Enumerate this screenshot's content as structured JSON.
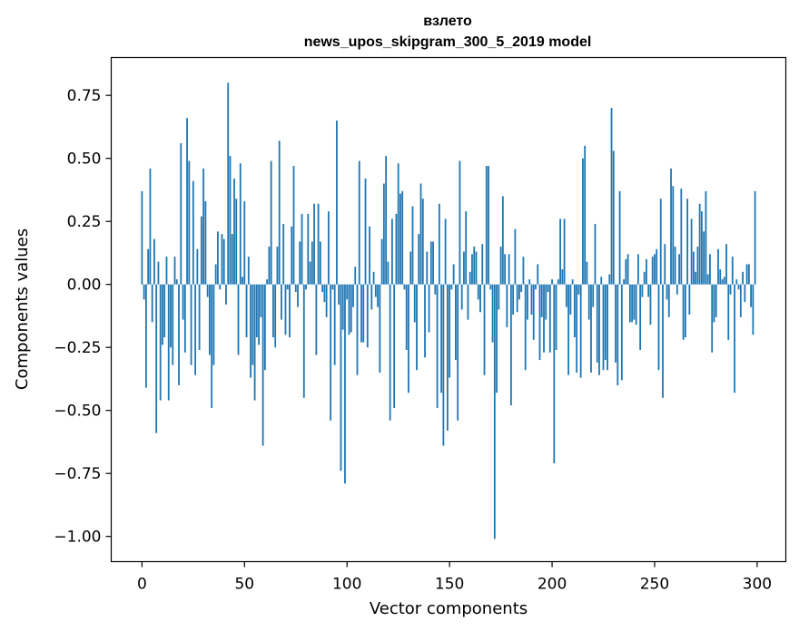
{
  "chart_data": {
    "type": "bar",
    "title": "взлето",
    "subtitle": "news_upos_skipgram_300_5_2019 model",
    "xlabel": "Vector components",
    "ylabel": "Components values",
    "xlim": [
      -15,
      314
    ],
    "ylim": [
      -1.1,
      0.9
    ],
    "xticks": [
      0,
      50,
      100,
      150,
      200,
      250,
      300
    ],
    "yticks": [
      -1.0,
      -0.75,
      -0.5,
      -0.25,
      0.0,
      0.25,
      0.5,
      0.75
    ],
    "xtick_labels": [
      "0",
      "50",
      "100",
      "150",
      "200",
      "250",
      "300"
    ],
    "ytick_labels": [
      "−1.00",
      "−0.75",
      "−0.50",
      "−0.25",
      "0.00",
      "0.25",
      "0.50",
      "0.75"
    ],
    "bar_color": "#1f77b4",
    "grid": false,
    "x": [
      0,
      1,
      2,
      3,
      4,
      5,
      6,
      7,
      8,
      9,
      10,
      11,
      12,
      13,
      14,
      15,
      16,
      17,
      18,
      19,
      20,
      21,
      22,
      23,
      24,
      25,
      26,
      27,
      28,
      29,
      30,
      31,
      32,
      33,
      34,
      35,
      36,
      37,
      38,
      39,
      40,
      41,
      42,
      43,
      44,
      45,
      46,
      47,
      48,
      49,
      50,
      51,
      52,
      53,
      54,
      55,
      56,
      57,
      58,
      59,
      60,
      61,
      62,
      63,
      64,
      65,
      66,
      67,
      68,
      69,
      70,
      71,
      72,
      73,
      74,
      75,
      76,
      77,
      78,
      79,
      80,
      81,
      82,
      83,
      84,
      85,
      86,
      87,
      88,
      89,
      90,
      91,
      92,
      93,
      94,
      95,
      96,
      97,
      98,
      99,
      100,
      101,
      102,
      103,
      104,
      105,
      106,
      107,
      108,
      109,
      110,
      111,
      112,
      113,
      114,
      115,
      116,
      117,
      118,
      119,
      120,
      121,
      122,
      123,
      124,
      125,
      126,
      127,
      128,
      129,
      130,
      131,
      132,
      133,
      134,
      135,
      136,
      137,
      138,
      139,
      140,
      141,
      142,
      143,
      144,
      145,
      146,
      147,
      148,
      149,
      150,
      151,
      152,
      153,
      154,
      155,
      156,
      157,
      158,
      159,
      160,
      161,
      162,
      163,
      164,
      165,
      166,
      167,
      168,
      169,
      170,
      171,
      172,
      173,
      174,
      175,
      176,
      177,
      178,
      179,
      180,
      181,
      182,
      183,
      184,
      185,
      186,
      187,
      188,
      189,
      190,
      191,
      192,
      193,
      194,
      195,
      196,
      197,
      198,
      199,
      200,
      201,
      202,
      203,
      204,
      205,
      206,
      207,
      208,
      209,
      210,
      211,
      212,
      213,
      214,
      215,
      216,
      217,
      218,
      219,
      220,
      221,
      222,
      223,
      224,
      225,
      226,
      227,
      228,
      229,
      230,
      231,
      232,
      233,
      234,
      235,
      236,
      237,
      238,
      239,
      240,
      241,
      242,
      243,
      244,
      245,
      246,
      247,
      248,
      249,
      250,
      251,
      252,
      253,
      254,
      255,
      256,
      257,
      258,
      259,
      260,
      261,
      262,
      263,
      264,
      265,
      266,
      267,
      268,
      269,
      270,
      271,
      272,
      273,
      274,
      275,
      276,
      277,
      278,
      279,
      280,
      281,
      282,
      283,
      284,
      285,
      286,
      287,
      288,
      289,
      290,
      291,
      292,
      293,
      294,
      295,
      296,
      297,
      298,
      299
    ],
    "values": [
      0.37,
      -0.06,
      -0.41,
      0.14,
      0.46,
      -0.15,
      0.18,
      -0.59,
      0.09,
      -0.46,
      -0.24,
      -0.21,
      0.11,
      -0.46,
      -0.25,
      -0.32,
      0.11,
      0.02,
      -0.4,
      0.56,
      -0.14,
      -0.27,
      0.66,
      0.49,
      -0.32,
      0.41,
      -0.36,
      0.14,
      -0.26,
      0.27,
      0.46,
      0.33,
      -0.05,
      -0.28,
      -0.49,
      -0.32,
      0.08,
      0.21,
      -0.02,
      0.2,
      0.18,
      -0.08,
      0.8,
      0.51,
      0.2,
      0.42,
      0.34,
      -0.28,
      0.48,
      0.03,
      0.33,
      -0.21,
      0.11,
      -0.37,
      -0.32,
      -0.46,
      -0.21,
      -0.24,
      -0.13,
      -0.64,
      -0.34,
      0.02,
      0.15,
      0.49,
      -0.21,
      -0.25,
      0.15,
      0.57,
      -0.14,
      0.24,
      -0.2,
      -0.02,
      -0.21,
      0.23,
      0.47,
      -0.03,
      -0.09,
      0.17,
      0.28,
      -0.45,
      -0.02,
      0.28,
      0.09,
      0.17,
      0.32,
      -0.28,
      0.32,
      0.17,
      -0.03,
      -0.07,
      -0.13,
      0.29,
      -0.54,
      -0.02,
      -0.32,
      0.65,
      -0.08,
      -0.74,
      -0.18,
      -0.79,
      -0.06,
      -0.2,
      -0.19,
      -0.09,
      0.07,
      -0.36,
      0.49,
      -0.23,
      -0.23,
      0.42,
      -0.25,
      0.23,
      -0.1,
      0.05,
      -0.05,
      -0.09,
      -0.35,
      0.18,
      0.4,
      0.51,
      0.09,
      -0.54,
      0.26,
      -0.49,
      0.28,
      0.48,
      0.36,
      0.37,
      -0.02,
      -0.26,
      -0.43,
      0.13,
      0.31,
      -0.15,
      -0.34,
      0.2,
      0.4,
      0.34,
      -0.29,
      0.13,
      -0.19,
      0.17,
      0.17,
      -0.04,
      -0.49,
      0.32,
      -0.43,
      -0.64,
      0.26,
      -0.58,
      -0.37,
      -0.02,
      0.08,
      -0.3,
      -0.54,
      0.49,
      -0.1,
      0.13,
      0.29,
      -0.14,
      0.05,
      0.12,
      0.15,
      0.13,
      -0.06,
      -0.11,
      0.16,
      -0.36,
      0.47,
      0.47,
      -0.02,
      -0.23,
      -1.01,
      -0.43,
      -0.1,
      0.15,
      0.35,
      0.12,
      -0.17,
      0.12,
      -0.48,
      -0.12,
      0.22,
      -0.11,
      -0.06,
      -0.03,
      0.11,
      -0.34,
      -0.14,
      0.02,
      -0.12,
      -0.22,
      -0.02,
      0.08,
      -0.3,
      -0.13,
      -0.27,
      -0.14,
      -0.03,
      -0.27,
      0.02,
      -0.71,
      -0.26,
      0.02,
      0.26,
      0.06,
      0.26,
      -0.09,
      -0.36,
      -0.12,
      0.02,
      -0.21,
      -0.35,
      -0.04,
      -0.37,
      0.5,
      0.55,
      0.09,
      -0.14,
      -0.35,
      -0.09,
      0.24,
      -0.31,
      -0.36,
      0.03,
      -0.34,
      -0.3,
      -0.34,
      0.04,
      0.7,
      0.53,
      -0.31,
      -0.4,
      0.37,
      -0.38,
      0.02,
      0.1,
      0.12,
      -0.15,
      -0.15,
      -0.14,
      -0.16,
      0.12,
      -0.26,
      -0.05,
      0.05,
      0.1,
      -0.05,
      -0.16,
      0.11,
      0.12,
      0.14,
      -0.34,
      0.34,
      -0.45,
      0.16,
      -0.06,
      -0.13,
      0.46,
      0.39,
      0.15,
      -0.04,
      0.12,
      0.38,
      -0.22,
      -0.21,
      0.34,
      -0.12,
      0.26,
      0.13,
      0.05,
      0.15,
      0.32,
      0.29,
      0.21,
      0.37,
      0.04,
      0.12,
      -0.27,
      -0.15,
      -0.13,
      0.14,
      0.06,
      0.02,
      0.03,
      0.16,
      -0.22,
      -0.04,
      0.11,
      -0.43,
      0.02,
      -0.02,
      -0.13,
      0.05,
      -0.07,
      0.08,
      0.08,
      -0.09,
      -0.2,
      0.37
    ]
  }
}
